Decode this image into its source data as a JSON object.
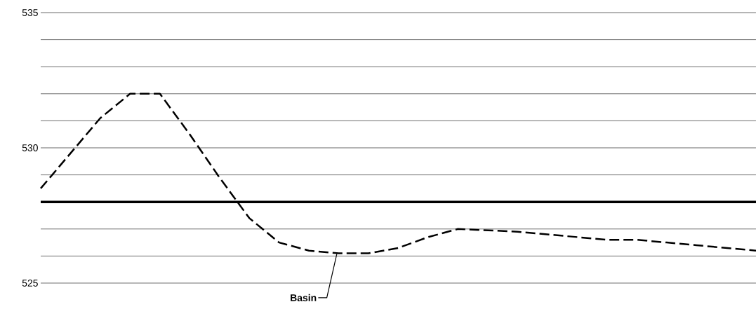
{
  "chart_data": {
    "type": "line",
    "categories": [
      null,
      null,
      null,
      null,
      null,
      null,
      null,
      null,
      null,
      null,
      null,
      null,
      null,
      null,
      null,
      null,
      null,
      null,
      null,
      null,
      null,
      null,
      null,
      null,
      null
    ],
    "series": [
      {
        "color": "#000000",
        "line_style": "dashed",
        "values": [
          528.5,
          529.8,
          531.1,
          532,
          532,
          530.5,
          528.9,
          527.4,
          526.5,
          526.2,
          526.1,
          526.1,
          526.3,
          526.7,
          527.0,
          526.95,
          526.9,
          526.8,
          526.7,
          526.6,
          526.6,
          526.5,
          526.4,
          526.3,
          526.2
        ]
      }
    ],
    "ylim": [
      525,
      535
    ],
    "yticks": [
      525,
      {
        "value": 526,
        "label": null
      },
      {
        "value": 527,
        "label": null
      },
      {
        "value": 528,
        "label": null
      },
      {
        "value": 529,
        "label": null
      },
      530,
      {
        "value": 531,
        "label": null
      },
      {
        "value": 532,
        "label": null
      },
      {
        "value": 533,
        "label": null
      },
      {
        "value": 534,
        "label": null
      },
      535
    ],
    "grid": "y",
    "tick_labels": "y",
    "ref_lines": [
      {
        "axis": "y",
        "value": 528,
        "color": "#000000",
        "line_style": "solid"
      }
    ],
    "annotations": [
      "Basin"
    ]
  }
}
